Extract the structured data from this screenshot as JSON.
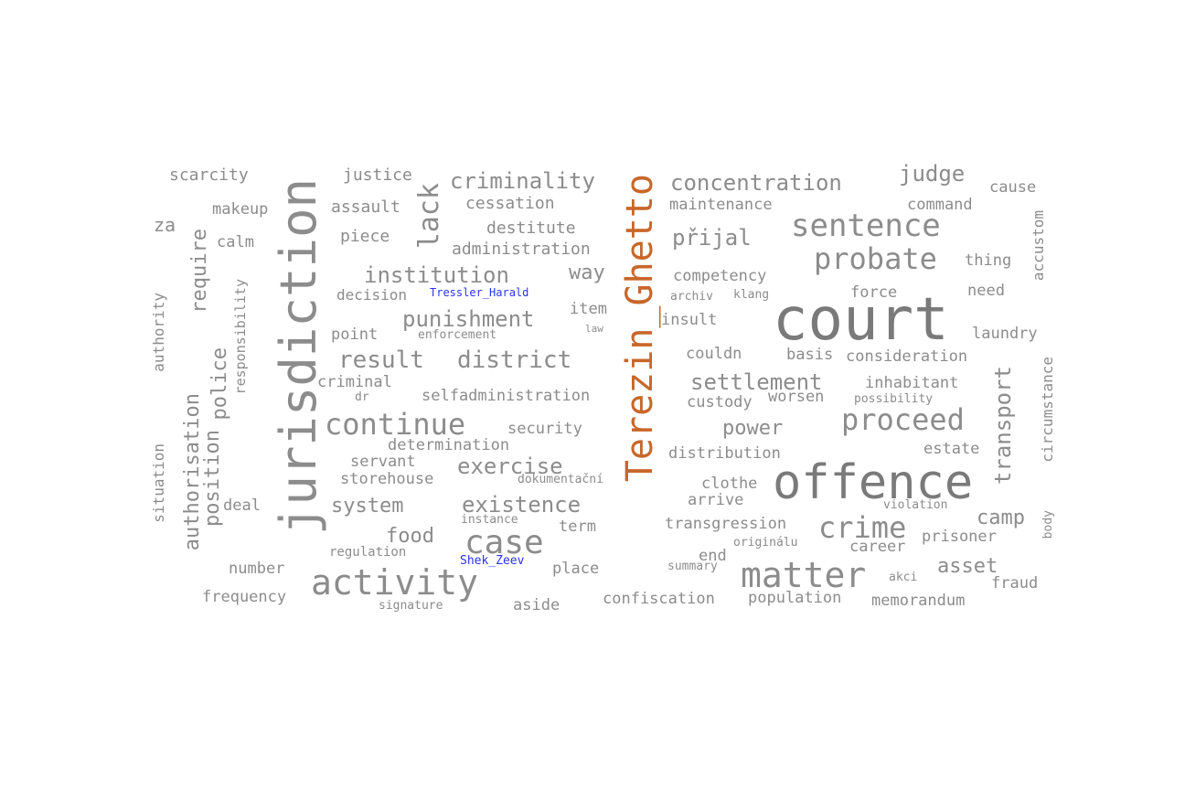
{
  "colors": {
    "default": "#8c8c8c",
    "dark": "#7a7a7a",
    "place": "#c8672a",
    "person": "#2a33ff"
  },
  "words": [
    {
      "text": "court",
      "color": "dark"
    },
    {
      "text": "jurisdiction",
      "color": "default"
    },
    {
      "text": "Terezin_Ghetto",
      "color": "place"
    },
    {
      "text": "offence",
      "color": "dark"
    },
    {
      "text": "matter",
      "color": "default"
    },
    {
      "text": "activity",
      "color": "default"
    },
    {
      "text": "case",
      "color": "default"
    },
    {
      "text": "sentence",
      "color": "default"
    },
    {
      "text": "probate",
      "color": "default"
    },
    {
      "text": "crime",
      "color": "default"
    },
    {
      "text": "proceed",
      "color": "default"
    },
    {
      "text": "continue",
      "color": "default"
    },
    {
      "text": "lack",
      "color": "default"
    },
    {
      "text": "concentration",
      "color": "default"
    },
    {
      "text": "criminality",
      "color": "default"
    },
    {
      "text": "institution",
      "color": "default"
    },
    {
      "text": "district",
      "color": "default"
    },
    {
      "text": "result",
      "color": "default"
    },
    {
      "text": "settlement",
      "color": "default"
    },
    {
      "text": "existence",
      "color": "default"
    },
    {
      "text": "punishment",
      "color": "default"
    },
    {
      "text": "exercise",
      "color": "default"
    },
    {
      "text": "transport",
      "color": "default"
    },
    {
      "text": "authorisation",
      "color": "default"
    },
    {
      "text": "police",
      "color": "default"
    },
    {
      "text": "position",
      "color": "default"
    },
    {
      "text": "require",
      "color": "default"
    },
    {
      "text": "judge",
      "color": "default"
    },
    {
      "text": "přijal",
      "color": "default"
    },
    {
      "text": "power",
      "color": "default"
    },
    {
      "text": "system",
      "color": "default"
    },
    {
      "text": "food",
      "color": "default"
    },
    {
      "text": "asset",
      "color": "default"
    },
    {
      "text": "camp",
      "color": "default"
    },
    {
      "text": "way",
      "color": "default"
    },
    {
      "text": "za",
      "color": "default"
    },
    {
      "text": "scarcity",
      "color": "default"
    },
    {
      "text": "justice",
      "color": "default"
    },
    {
      "text": "makeup",
      "color": "default"
    },
    {
      "text": "calm",
      "color": "default"
    },
    {
      "text": "assault",
      "color": "default"
    },
    {
      "text": "piece",
      "color": "default"
    },
    {
      "text": "cessation",
      "color": "default"
    },
    {
      "text": "destitute",
      "color": "default"
    },
    {
      "text": "administration",
      "color": "default"
    },
    {
      "text": "maintenance",
      "color": "default"
    },
    {
      "text": "command",
      "color": "default"
    },
    {
      "text": "cause",
      "color": "default"
    },
    {
      "text": "thing",
      "color": "default"
    },
    {
      "text": "need",
      "color": "default"
    },
    {
      "text": "accustom",
      "color": "default"
    },
    {
      "text": "competency",
      "color": "default"
    },
    {
      "text": "force",
      "color": "default"
    },
    {
      "text": "decision",
      "color": "default"
    },
    {
      "text": "Tressler_Harald",
      "color": "person"
    },
    {
      "text": "archiv",
      "color": "default"
    },
    {
      "text": "klang",
      "color": "default"
    },
    {
      "text": "item",
      "color": "default"
    },
    {
      "text": "law",
      "color": "default"
    },
    {
      "text": "insult",
      "color": "default"
    },
    {
      "text": "point",
      "color": "default"
    },
    {
      "text": "enforcement",
      "color": "default"
    },
    {
      "text": "laundry",
      "color": "default"
    },
    {
      "text": "couldn",
      "color": "default"
    },
    {
      "text": "basis",
      "color": "default"
    },
    {
      "text": "consideration",
      "color": "default"
    },
    {
      "text": "authority",
      "color": "default"
    },
    {
      "text": "responsibility",
      "color": "default"
    },
    {
      "text": "criminal",
      "color": "default"
    },
    {
      "text": "dr",
      "color": "default"
    },
    {
      "text": "selfadministration",
      "color": "default"
    },
    {
      "text": "custody",
      "color": "default"
    },
    {
      "text": "worsen",
      "color": "default"
    },
    {
      "text": "inhabitant",
      "color": "default"
    },
    {
      "text": "possibility",
      "color": "default"
    },
    {
      "text": "circumstance",
      "color": "default"
    },
    {
      "text": "security",
      "color": "default"
    },
    {
      "text": "determination",
      "color": "default"
    },
    {
      "text": "distribution",
      "color": "default"
    },
    {
      "text": "estate",
      "color": "default"
    },
    {
      "text": "servant",
      "color": "default"
    },
    {
      "text": "storehouse",
      "color": "default"
    },
    {
      "text": "dokumentační",
      "color": "default"
    },
    {
      "text": "clothe",
      "color": "default"
    },
    {
      "text": "situation",
      "color": "default"
    },
    {
      "text": "deal",
      "color": "default"
    },
    {
      "text": "arrive",
      "color": "default"
    },
    {
      "text": "violation",
      "color": "default"
    },
    {
      "text": "instance",
      "color": "default"
    },
    {
      "text": "term",
      "color": "default"
    },
    {
      "text": "transgression",
      "color": "default"
    },
    {
      "text": "body",
      "color": "default"
    },
    {
      "text": "prisoner",
      "color": "default"
    },
    {
      "text": "originálu",
      "color": "default"
    },
    {
      "text": "career",
      "color": "default"
    },
    {
      "text": "regulation",
      "color": "default"
    },
    {
      "text": "Shek_Zeev",
      "color": "person"
    },
    {
      "text": "end",
      "color": "default"
    },
    {
      "text": "number",
      "color": "default"
    },
    {
      "text": "place",
      "color": "default"
    },
    {
      "text": "summary",
      "color": "default"
    },
    {
      "text": "akci",
      "color": "default"
    },
    {
      "text": "fraud",
      "color": "default"
    },
    {
      "text": "frequency",
      "color": "default"
    },
    {
      "text": "confiscation",
      "color": "default"
    },
    {
      "text": "population",
      "color": "default"
    },
    {
      "text": "memorandum",
      "color": "default"
    },
    {
      "text": "signature",
      "color": "default"
    },
    {
      "text": "aside",
      "color": "default"
    }
  ]
}
